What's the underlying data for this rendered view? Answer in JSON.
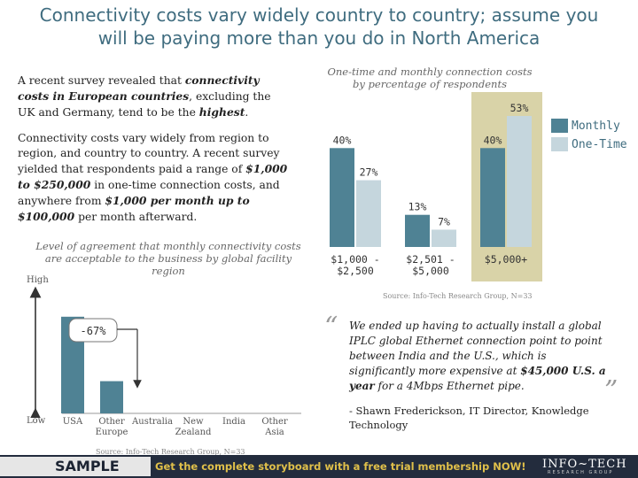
{
  "title_line1": "Connectivity costs vary widely country to country; assume you",
  "title_line2": "will be paying more than you do in North America",
  "para1": {
    "t1": "A recent survey revealed that ",
    "b1": "connectivity costs in European countries",
    "t2": ", excluding the UK and Germany, tend to be the ",
    "b2": "highest",
    "t3": "."
  },
  "para2": {
    "t1": "Connectivity costs vary widely from region to region, and country to country. A recent survey yielded that respondents paid a range of ",
    "b1": "$1,000 to $250,000",
    "t2": " in one-time connection costs, and anywhere from ",
    "b2": "$1,000 per month up to $100,000",
    "t3": " per month afterward."
  },
  "agreement_chart": {
    "title_line1": "Level of agreement that monthly connectivity costs",
    "title_line2": "are acceptable to the business by global facility",
    "title_line3": "region",
    "axis_high": "High",
    "axis_low": "Low",
    "callout": "-67%",
    "source": "Source: Info-Tech Research Group, N=33"
  },
  "cost_chart": {
    "title_line1": "One-time and monthly connection costs",
    "title_line2": "by percentage of respondents",
    "source": "Source: Info-Tech Research Group, N=33",
    "highlight_color": "#d9d3a8"
  },
  "quote": {
    "text1": "We ended up having to actually install a global IPLC global Ethernet connection point to point between India and the U.S., which is significantly more expensive at ",
    "bold": "$45,000 U.S. a year",
    "text2": " for a 4Mbps Ethernet pipe.",
    "attribution": "- Shawn Frederickson, IT Director, Knowledge Technology"
  },
  "footer": {
    "sample": "SAMPLE",
    "cta": "Get the complete storyboard with a free trial membership NOW!",
    "logo": "INFO~TECH",
    "logo_sub": "RESEARCH GROUP"
  },
  "chart_data": [
    {
      "type": "bar",
      "title": "One-time and monthly connection costs by percentage of respondents",
      "categories": [
        "$1,000 - $2,500",
        "$2,501 - $5,000",
        "$5,000+"
      ],
      "series": [
        {
          "name": "Monthly",
          "values": [
            40,
            13,
            40
          ],
          "color": "#4f8294"
        },
        {
          "name": "One-Time",
          "values": [
            27,
            7,
            53
          ],
          "color": "#c5d6dd"
        }
      ],
      "ylim": [
        0,
        53
      ],
      "grid": false,
      "legend": "right",
      "highlight_category": "$5,000+"
    },
    {
      "type": "bar",
      "title": "Level of agreement that monthly connectivity costs are acceptable to the business by global facility region",
      "categories": [
        "USA",
        "Other Europe",
        "Australia",
        "New Zealand",
        "India",
        "Other Asia"
      ],
      "values": [
        0.78,
        0.26,
        0,
        0,
        0,
        0
      ],
      "ylabel_high": "High",
      "ylabel_low": "Low",
      "color": "#4f8294"
    }
  ]
}
